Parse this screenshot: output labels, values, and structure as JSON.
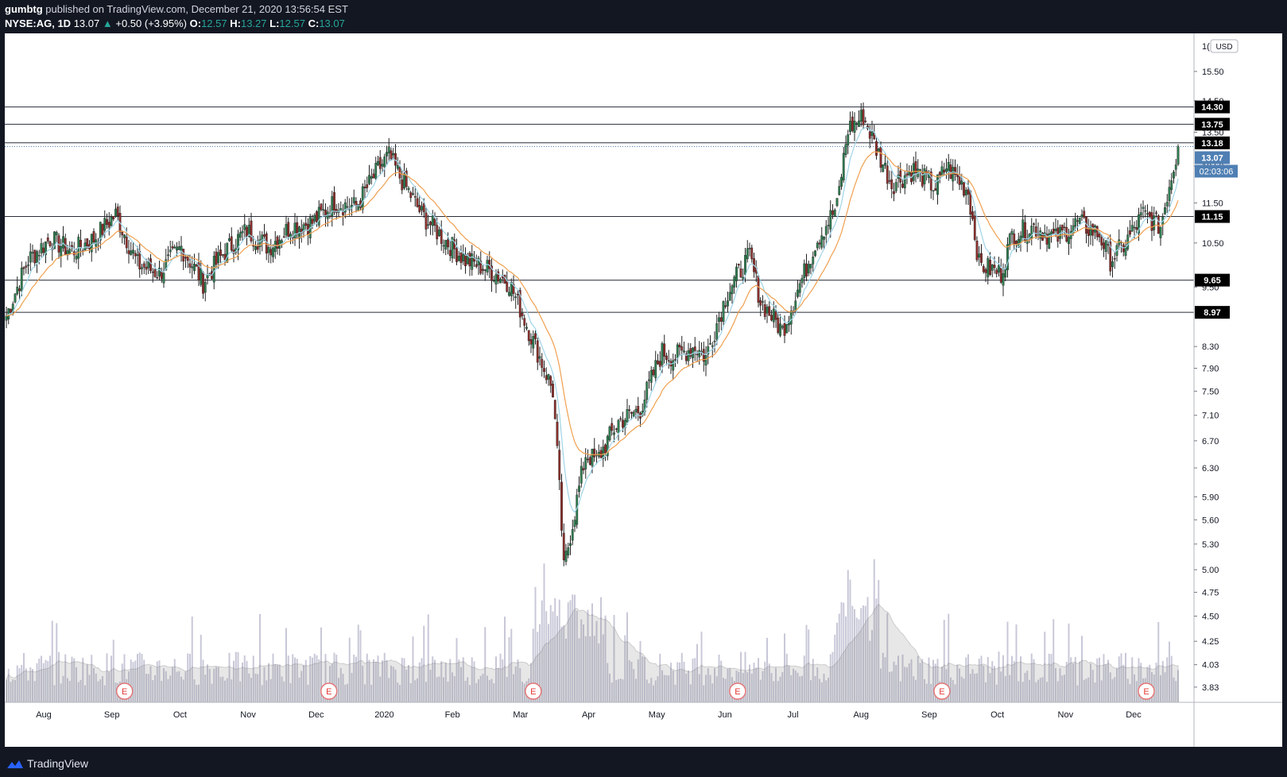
{
  "header": {
    "author": "gumbtg",
    "published": "published on TradingView.com, December 21, 2020 13:56:54 EST",
    "symbol": "NYSE:AG, 1D",
    "last": "13.07",
    "change": "+0.50 (+3.95%)",
    "o_label": "O:",
    "o": "12.57",
    "h_label": "H:",
    "h": "13.27",
    "l_label": "L:",
    "l": "12.57",
    "c_label": "C:",
    "c": "13.07"
  },
  "footer": {
    "brand": "TradingView"
  },
  "colors": {
    "up": "#2e7d50",
    "down": "#8b2e2b",
    "ma_fast": "#9fd4e8",
    "ma_slow": "#f0a050",
    "volume": "#c8c8d8",
    "price_tag": "#4f7fb3"
  },
  "chart_data": {
    "type": "candlestick",
    "currency": "USD",
    "y_ticks": [
      15.5,
      14.5,
      13.5,
      12.5,
      11.5,
      10.5,
      9.5,
      8.3,
      7.9,
      7.5,
      7.1,
      6.7,
      6.3,
      5.9,
      5.6,
      5.3,
      5.0,
      4.75,
      4.5,
      4.25,
      4.03,
      3.83
    ],
    "y_tick_labels": [
      "15.50",
      "14.50",
      "13.50",
      "12.50",
      "11.50",
      "10.50",
      "9.50",
      "8.30",
      "7.90",
      "7.50",
      "7.10",
      "6.70",
      "6.30",
      "5.90",
      "5.60",
      "5.30",
      "5.00",
      "4.75",
      "4.50",
      "4.25",
      "4.03",
      "3.83"
    ],
    "y_top_label": "1(",
    "y_scale": "log",
    "y_range": [
      3.7,
      16.9
    ],
    "x_labels": [
      "Aug",
      "Sep",
      "Oct",
      "Nov",
      "Dec",
      "2020",
      "Feb",
      "Mar",
      "Apr",
      "May",
      "Jun",
      "Jul",
      "Aug",
      "Sep",
      "Oct",
      "Nov",
      "Dec"
    ],
    "horizontal_levels": [
      "14.30",
      "13.75",
      "13.18",
      "11.15",
      "9.65",
      "8.97"
    ],
    "last_price": {
      "value": 13.07,
      "label": "13.07",
      "countdown": "02:03:06"
    },
    "earnings_marker": "E",
    "earnings_x_index": [
      1,
      4,
      7,
      10,
      13,
      16
    ],
    "ma_lines": [
      {
        "period": "fast"
      },
      {
        "period": "slow"
      }
    ],
    "price_path_knots": [
      [
        0,
        8.9
      ],
      [
        10,
        10.1
      ],
      [
        20,
        10.6
      ],
      [
        30,
        10.3
      ],
      [
        40,
        10.6
      ],
      [
        50,
        11.2
      ],
      [
        60,
        10.0
      ],
      [
        70,
        9.8
      ],
      [
        80,
        10.4
      ],
      [
        90,
        9.6
      ],
      [
        100,
        10.3
      ],
      [
        110,
        10.8
      ],
      [
        120,
        10.4
      ],
      [
        130,
        10.9
      ],
      [
        140,
        11.0
      ],
      [
        150,
        11.5
      ],
      [
        160,
        11.4
      ],
      [
        170,
        12.4
      ],
      [
        175,
        12.8
      ],
      [
        180,
        12.2
      ],
      [
        190,
        11.2
      ],
      [
        200,
        10.6
      ],
      [
        210,
        10.1
      ],
      [
        220,
        9.9
      ],
      [
        230,
        9.6
      ],
      [
        240,
        8.5
      ],
      [
        250,
        7.5
      ],
      [
        255,
        5.0
      ],
      [
        260,
        5.7
      ],
      [
        265,
        6.5
      ],
      [
        270,
        6.4
      ],
      [
        280,
        7.0
      ],
      [
        290,
        7.2
      ],
      [
        300,
        8.2
      ],
      [
        305,
        8.1
      ],
      [
        315,
        8.3
      ],
      [
        320,
        8.1
      ],
      [
        330,
        9.4
      ],
      [
        340,
        10.2
      ],
      [
        345,
        9.2
      ],
      [
        355,
        8.6
      ],
      [
        360,
        9.2
      ],
      [
        365,
        9.8
      ],
      [
        370,
        10.5
      ],
      [
        380,
        11.4
      ],
      [
        385,
        13.6
      ],
      [
        392,
        14.0
      ],
      [
        398,
        13.0
      ],
      [
        405,
        12.0
      ],
      [
        415,
        12.4
      ],
      [
        425,
        11.9
      ],
      [
        430,
        12.5
      ],
      [
        440,
        11.8
      ],
      [
        445,
        10.0
      ],
      [
        455,
        9.8
      ],
      [
        460,
        10.7
      ],
      [
        470,
        10.9
      ],
      [
        480,
        10.6
      ],
      [
        490,
        11.0
      ],
      [
        500,
        10.7
      ],
      [
        505,
        10.1
      ],
      [
        512,
        10.5
      ],
      [
        520,
        11.2
      ],
      [
        528,
        10.9
      ],
      [
        532,
        12.0
      ],
      [
        536,
        13.0
      ]
    ],
    "bar_count": 537
  }
}
